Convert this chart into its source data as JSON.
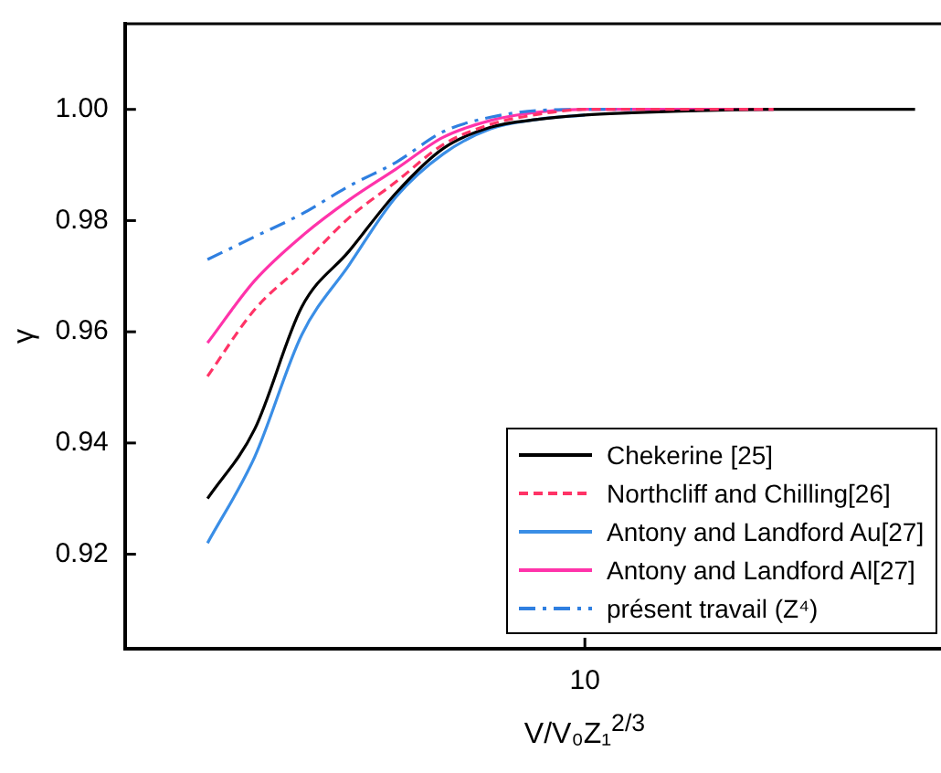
{
  "chart_data": {
    "type": "line",
    "xlabel": "V/V₀Z₁$^{2/3}$",
    "ylabel": "γ",
    "categories": [
      null,
      null,
      null,
      null,
      null,
      null,
      null,
      null,
      "10",
      null,
      null,
      null,
      null,
      null,
      null,
      null
    ],
    "ylim": [
      0.903,
      1.0154
    ],
    "yticks": [
      {
        "value": 0.92,
        "label": "0.92"
      },
      {
        "value": 0.94,
        "label": "0.94"
      },
      {
        "value": 0.96,
        "label": "0.96"
      },
      {
        "value": 0.98,
        "label": "0.98"
      },
      {
        "value": 1.0,
        "label": "1.00"
      }
    ],
    "grid": false,
    "legend": "bottom right",
    "marker": "none",
    "series": [
      {
        "name": "Chekerine [25]",
        "color": "#000000",
        "line_style": "solid",
        "values": [
          0.93,
          0.9425,
          0.9645,
          0.9745,
          0.985,
          0.993,
          0.9968,
          0.9982,
          0.999,
          0.9994,
          0.9997,
          0.9999,
          1.0,
          1.0,
          1.0,
          1.0
        ]
      },
      {
        "name": "Northcliff and Chilling[26]",
        "color": "#ff3366",
        "line_style": "dashed",
        "values": [
          0.952,
          0.964,
          0.972,
          0.9805,
          0.987,
          0.9937,
          0.9973,
          0.9991,
          1.0,
          1.0,
          1.0,
          1.0,
          1.0,
          null,
          null,
          null
        ]
      },
      {
        "name": "Antony and Landford Au[27]",
        "color": "#3a8ee6",
        "line_style": "solid",
        "values": [
          0.922,
          0.9375,
          0.9595,
          0.972,
          0.9843,
          0.992,
          0.9965,
          0.9982,
          0.999,
          null,
          null,
          null,
          null,
          null,
          null,
          null
        ]
      },
      {
        "name": "Antony and Landford Al[27]",
        "color": "#ff33aa",
        "line_style": "solid",
        "values": [
          0.958,
          0.9692,
          0.9772,
          0.9837,
          0.9893,
          0.995,
          0.998,
          0.9995,
          1.0,
          1.0,
          1.0,
          1.0,
          1.0,
          null,
          null,
          null
        ]
      },
      {
        "name": "présent travail (Z⁴)",
        "color": "#2f7fe0",
        "line_style": "dashdot",
        "values": [
          0.973,
          0.9771,
          0.9812,
          0.9862,
          0.9905,
          0.996,
          0.9986,
          0.9998,
          1.0,
          1.0,
          null,
          null,
          null,
          null,
          null,
          null
        ]
      }
    ]
  }
}
